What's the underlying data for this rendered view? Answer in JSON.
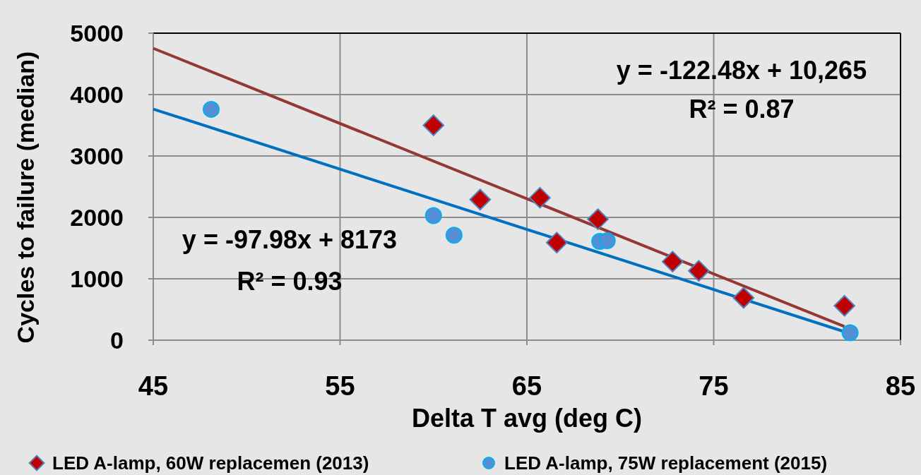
{
  "chart_data": {
    "type": "scatter",
    "xlabel": "Delta T avg (deg C)",
    "ylabel": "Cycles to failure (median)",
    "xlim": [
      45,
      85
    ],
    "xticks": [
      45,
      55,
      65,
      75,
      85
    ],
    "ylim": [
      0,
      5000
    ],
    "yticks": [
      0,
      1000,
      2000,
      3000,
      4000,
      5000
    ],
    "grid": true,
    "legend": "bottom",
    "annotations": [
      "y = -122.48x + 10,265",
      "R² = 0.87",
      "y = -97.98x + 8173",
      "R² = 0.93"
    ],
    "series": [
      {
        "name": "LED A-lamp, 60W replacemen (2013)",
        "color": "#c00000",
        "marker": "diamond",
        "x": [
          60.0,
          62.5,
          65.7,
          66.6,
          68.8,
          72.8,
          74.2,
          76.6,
          82.0
        ],
        "values": [
          3500,
          2290,
          2320,
          1590,
          1970,
          1280,
          1130,
          690,
          560
        ]
      },
      {
        "name": "LED A-lamp, 75W replacement (2015)",
        "color": "#558ed5",
        "marker": "circle",
        "x": [
          48.1,
          60.0,
          61.1,
          68.9,
          69.3,
          82.3
        ],
        "values": [
          3760,
          2030,
          1710,
          1610,
          1620,
          120
        ]
      },
      {
        "type": "line",
        "color": "#953735",
        "marker": "none",
        "x": [
          45,
          82.0
        ],
        "values": [
          4753,
          222
        ]
      },
      {
        "type": "line",
        "color": "#0070c0",
        "marker": "none",
        "x": [
          45,
          82.3
        ],
        "values": [
          3764,
          109
        ]
      }
    ]
  }
}
